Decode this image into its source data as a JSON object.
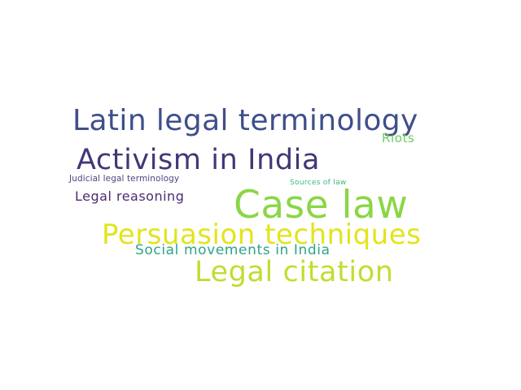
{
  "word_cloud": {
    "background": "#ffffff",
    "words": [
      {
        "text": "Latin legal terminology",
        "color": "#3f4f8a"
      },
      {
        "text": "Activism in India",
        "color": "#433677"
      },
      {
        "text": "Riots",
        "color": "#6ccd5a"
      },
      {
        "text": "Judicial legal terminology",
        "color": "#4d4480"
      },
      {
        "text": "Sources of law",
        "color": "#3bb87f"
      },
      {
        "text": "Legal reasoning",
        "color": "#4e2a6f"
      },
      {
        "text": "Case law",
        "color": "#8bd646"
      },
      {
        "text": "Persuasion techniques",
        "color": "#e3e41b"
      },
      {
        "text": "Social movements in India",
        "color": "#2da38a"
      },
      {
        "text": "Legal citation",
        "color": "#c3dc30"
      }
    ]
  }
}
